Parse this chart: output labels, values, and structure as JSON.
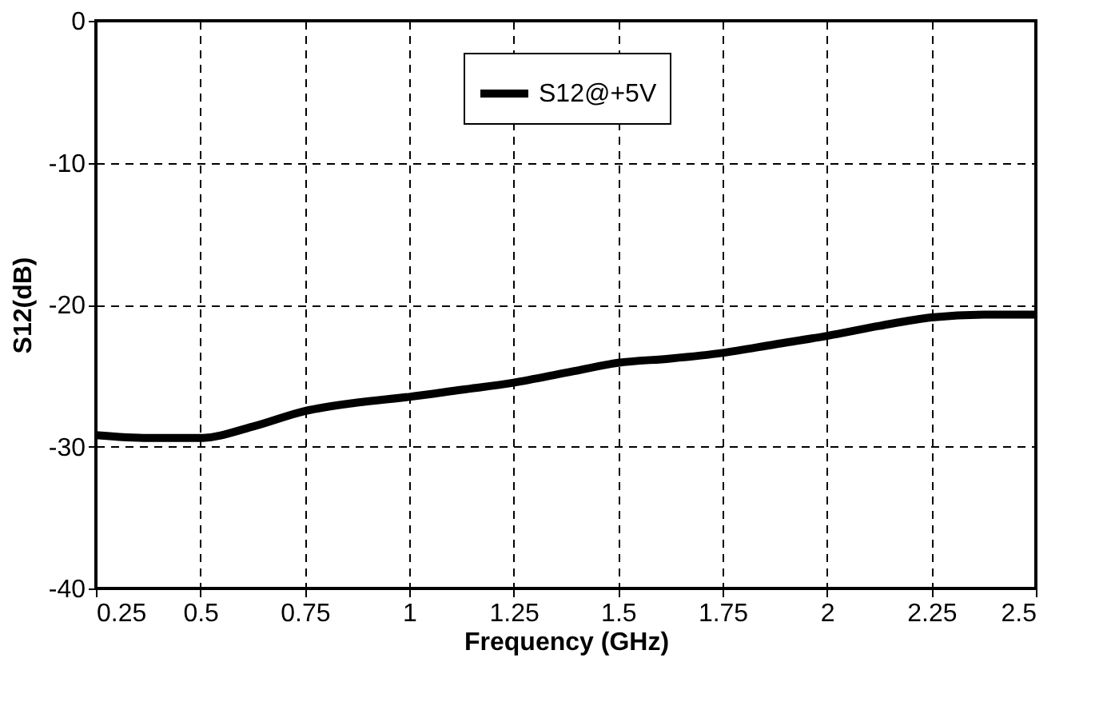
{
  "chart_data": {
    "type": "line",
    "xlabel": "Frequency (GHz)",
    "ylabel": "S12(dB)",
    "x": [
      0.25,
      0.375,
      0.5,
      0.625,
      0.75,
      0.875,
      1.0,
      1.125,
      1.25,
      1.375,
      1.5,
      1.625,
      1.75,
      1.875,
      2.0,
      2.125,
      2.25,
      2.375,
      2.5
    ],
    "series": [
      {
        "name": "S12@+5V",
        "color": "#000000",
        "values": [
          -29.2,
          -29.4,
          -29.4,
          -28.6,
          -27.5,
          -26.9,
          -26.5,
          -26.0,
          -25.5,
          -24.8,
          -24.1,
          -23.8,
          -23.4,
          -22.8,
          -22.2,
          -21.5,
          -20.9,
          -20.7,
          -20.7
        ]
      }
    ],
    "xlim": [
      0.25,
      2.5
    ],
    "xticks": [
      0.25,
      0.5,
      0.75,
      1,
      1.25,
      1.5,
      1.75,
      2,
      2.25,
      2.5
    ],
    "ylim": [
      -40,
      0
    ],
    "yticks": [
      -40,
      -30,
      -20,
      -10,
      0
    ],
    "grid": true,
    "legend": "top",
    "marker": "none",
    "line_style": "solid"
  }
}
